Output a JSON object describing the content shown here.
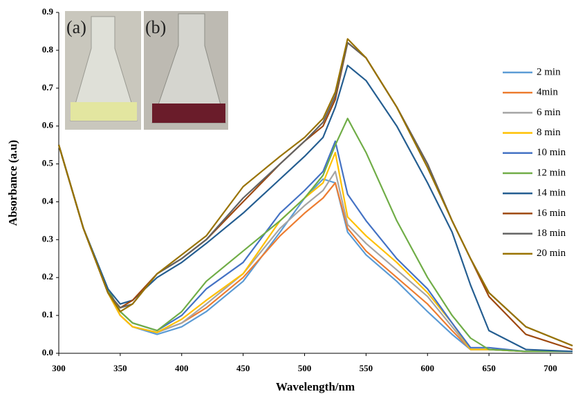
{
  "chart_data": {
    "type": "line",
    "x_label": "Wavelength/nm",
    "y_label": "Absorbance (a.u)",
    "annotations": [
      "(a)",
      "(b)"
    ],
    "x": [
      300,
      320,
      340,
      350,
      360,
      380,
      400,
      420,
      450,
      480,
      500,
      515,
      525,
      535,
      550,
      575,
      600,
      620,
      635,
      650,
      680,
      718
    ],
    "xlim": [
      300,
      718
    ],
    "xticks": [
      300,
      350,
      400,
      450,
      500,
      550,
      600,
      650,
      700
    ],
    "ylim": [
      0,
      0.9
    ],
    "yticks": [
      {
        "value": 0,
        "label": "0.0"
      },
      0.1,
      0.2,
      0.3,
      0.4,
      0.5,
      0.6,
      0.7,
      0.8,
      0.9
    ],
    "legend": "right",
    "series": [
      {
        "name": "2 min",
        "color": "#5b9bd5",
        "values": [
          0.55,
          0.33,
          0.16,
          0.1,
          0.07,
          0.05,
          0.07,
          0.11,
          0.19,
          0.32,
          0.41,
          0.46,
          0.45,
          0.32,
          0.26,
          0.19,
          0.11,
          0.05,
          0.01,
          0.01,
          0.005,
          0.005
        ]
      },
      {
        "name": "4min",
        "color": "#ed7d31",
        "values": [
          0.55,
          0.33,
          0.16,
          0.1,
          0.07,
          0.055,
          0.08,
          0.12,
          0.2,
          0.31,
          0.37,
          0.41,
          0.45,
          0.33,
          0.27,
          0.2,
          0.13,
          0.06,
          0.01,
          0.01,
          0.005,
          0.005
        ]
      },
      {
        "name": "6 min",
        "color": "#a5a5a5",
        "values": [
          0.55,
          0.33,
          0.16,
          0.1,
          0.07,
          0.055,
          0.08,
          0.13,
          0.21,
          0.33,
          0.39,
          0.43,
          0.48,
          0.34,
          0.29,
          0.22,
          0.15,
          0.07,
          0.01,
          0.01,
          0.005,
          0.005
        ]
      },
      {
        "name": "8 min",
        "color": "#ffc000",
        "values": [
          0.55,
          0.33,
          0.16,
          0.1,
          0.07,
          0.055,
          0.09,
          0.14,
          0.21,
          0.35,
          0.41,
          0.45,
          0.53,
          0.36,
          0.31,
          0.24,
          0.16,
          0.08,
          0.01,
          0.01,
          0.005,
          0.005
        ]
      },
      {
        "name": "10 min",
        "color": "#4472c4",
        "values": [
          0.55,
          0.33,
          0.17,
          0.11,
          0.08,
          0.06,
          0.1,
          0.17,
          0.24,
          0.37,
          0.43,
          0.48,
          0.56,
          0.42,
          0.35,
          0.25,
          0.17,
          0.08,
          0.015,
          0.015,
          0.005,
          0.005
        ]
      },
      {
        "name": "12 min",
        "color": "#70ad47",
        "values": [
          0.55,
          0.33,
          0.17,
          0.11,
          0.08,
          0.06,
          0.11,
          0.19,
          0.27,
          0.35,
          0.41,
          0.47,
          0.55,
          0.62,
          0.53,
          0.35,
          0.2,
          0.1,
          0.04,
          0.01,
          0.005,
          0.005
        ]
      },
      {
        "name": "14 min",
        "color": "#255e91",
        "values": [
          0.55,
          0.33,
          0.17,
          0.13,
          0.14,
          0.2,
          0.24,
          0.29,
          0.37,
          0.46,
          0.52,
          0.57,
          0.65,
          0.76,
          0.72,
          0.6,
          0.45,
          0.32,
          0.18,
          0.06,
          0.01,
          0.005
        ]
      },
      {
        "name": "16 min",
        "color": "#9e480e",
        "values": [
          0.55,
          0.33,
          0.16,
          0.12,
          0.14,
          0.21,
          0.25,
          0.3,
          0.4,
          0.5,
          0.56,
          0.6,
          0.67,
          0.82,
          0.78,
          0.65,
          0.5,
          0.35,
          0.25,
          0.15,
          0.05,
          0.01
        ]
      },
      {
        "name": "18 min",
        "color": "#636363",
        "values": [
          0.55,
          0.33,
          0.16,
          0.12,
          0.13,
          0.21,
          0.25,
          0.3,
          0.41,
          0.5,
          0.56,
          0.61,
          0.68,
          0.82,
          0.78,
          0.65,
          0.5,
          0.35,
          0.25,
          0.16,
          0.07,
          0.02
        ]
      },
      {
        "name": "20 min",
        "color": "#997300",
        "values": [
          0.55,
          0.33,
          0.16,
          0.11,
          0.13,
          0.21,
          0.26,
          0.31,
          0.44,
          0.52,
          0.57,
          0.62,
          0.69,
          0.83,
          0.78,
          0.65,
          0.49,
          0.35,
          0.25,
          0.16,
          0.07,
          0.02
        ]
      }
    ]
  }
}
